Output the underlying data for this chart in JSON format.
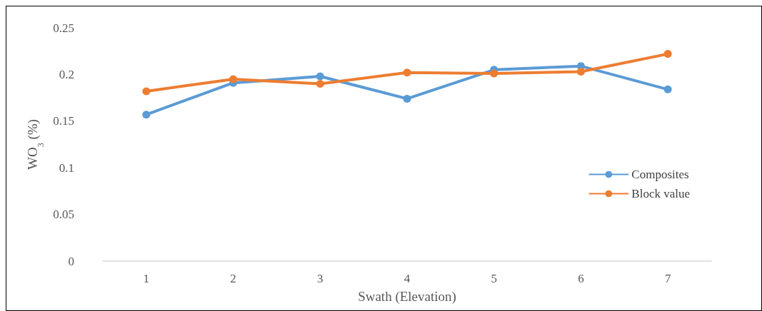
{
  "chart_data": {
    "type": "line",
    "xlabel": "Swath (Elevation)",
    "ylabel": "WO$_{3}$ (%)",
    "categories": [
      "1",
      "2",
      "3",
      "4",
      "5",
      "6",
      "7"
    ],
    "series": [
      {
        "name": "Composites",
        "color": "#5b9bd5",
        "values": [
          0.157,
          0.191,
          0.198,
          0.174,
          0.205,
          0.209,
          0.184
        ]
      },
      {
        "name": "Block value",
        "color": "#ed7d31",
        "values": [
          0.182,
          0.195,
          0.19,
          0.202,
          0.201,
          0.203,
          0.222
        ]
      }
    ],
    "ylim": [
      0,
      0.25
    ],
    "yticks": [
      0,
      0.05,
      0.1,
      0.15,
      0.2,
      0.25
    ],
    "grid": false,
    "legend": "right",
    "marker": "circle",
    "line_style": "solid"
  }
}
